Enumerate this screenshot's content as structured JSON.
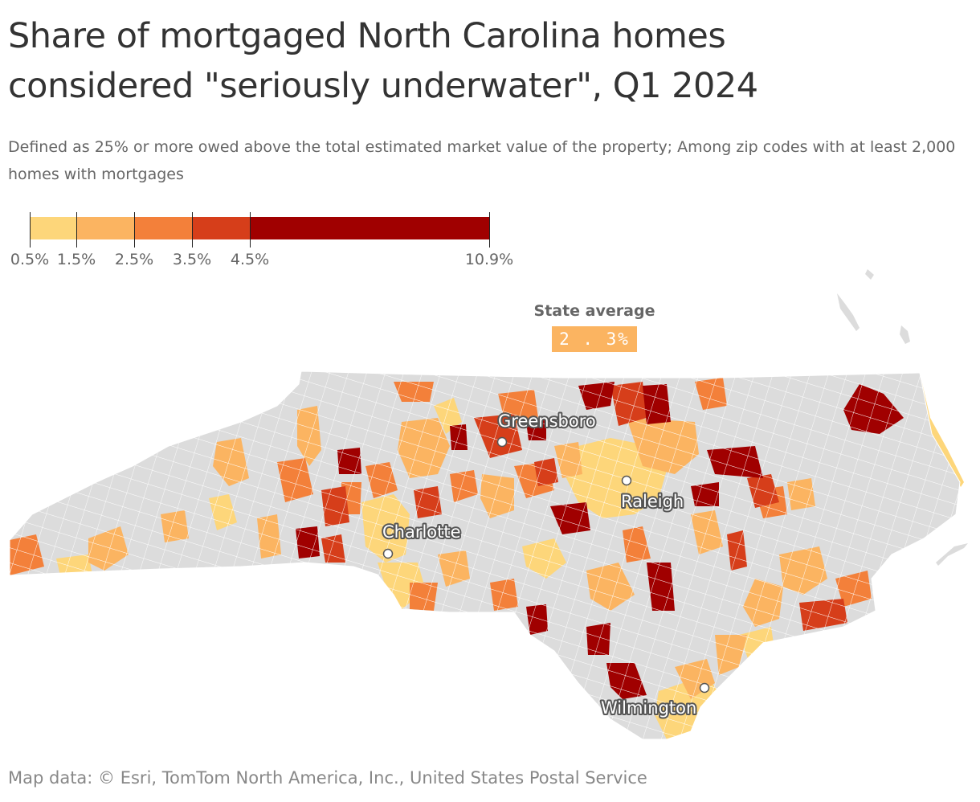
{
  "title": "Share of mortgaged North Carolina homes considered \"seriously underwater\", Q1 2024",
  "subtitle": "Defined as 25% or more owed above the total estimated market value of the property; Among zip codes with at least 2,000 homes with mortgages",
  "legend": {
    "breaks": [
      0.5,
      1.5,
      2.5,
      3.5,
      4.5,
      10.9
    ],
    "labels": [
      "0.5%",
      "1.5%",
      "2.5%",
      "3.5%",
      "4.5%",
      "10.9%"
    ],
    "colors": [
      "#fdd67a",
      "#fbb461",
      "#f3803a",
      "#d63e1a",
      "#a00000"
    ]
  },
  "state_average": {
    "label": "State average",
    "value": "2.3%",
    "value_display": "2 . 3%"
  },
  "map": {
    "region": "North Carolina zip codes",
    "no_data_color": "#dcdcdc",
    "cities": [
      {
        "name": "Greensboro"
      },
      {
        "name": "Raleigh"
      },
      {
        "name": "Charlotte"
      },
      {
        "name": "Wilmington"
      }
    ]
  },
  "source": "Map data: © Esri, TomTom North America, Inc., United States Postal Service"
}
